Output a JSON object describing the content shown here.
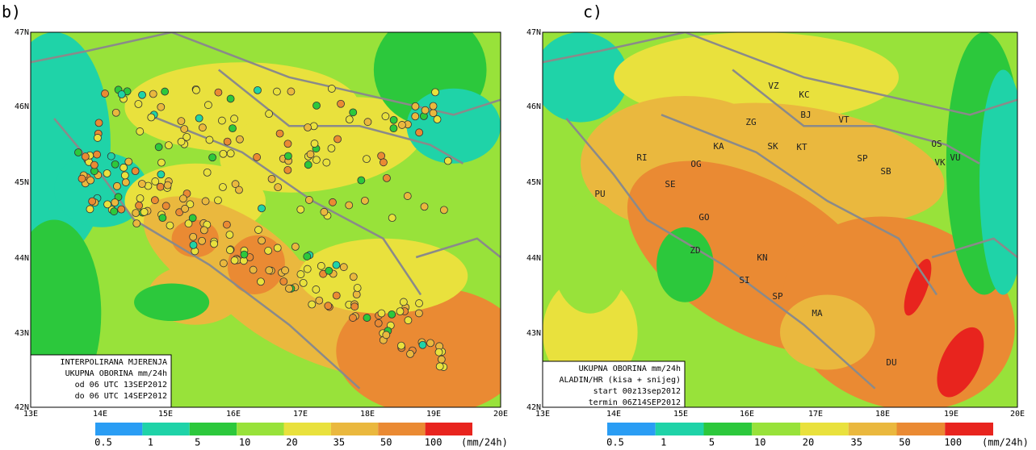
{
  "panels": [
    {
      "label": "b)",
      "lat_ticks": [
        "47N",
        "46N",
        "45N",
        "44N",
        "43N",
        "42N"
      ],
      "lon_ticks": [
        "13E",
        "14E",
        "15E",
        "16E",
        "17E",
        "18E",
        "19E",
        "20E"
      ],
      "legend": [
        "INTERPOLIRANA MJERENJA",
        "UKUPNA OBORINA mm/24h",
        "od 06 UTC 13SEP2012",
        "do 06 UTC 14SEP2012"
      ],
      "colorbar": [
        "0.5",
        "1",
        "5",
        "10",
        "20",
        "35",
        "50",
        "100"
      ],
      "unit": "(mm/24h)"
    },
    {
      "label": "c)",
      "lat_ticks": [
        "47N",
        "46N",
        "45N",
        "44N",
        "43N",
        "42N"
      ],
      "lon_ticks": [
        "13E",
        "14E",
        "15E",
        "16E",
        "17E",
        "18E",
        "19E",
        "20E"
      ],
      "legend": [
        "UKUPNA OBORINA mm/24h",
        "ALADIN/HR (kisa + snijeg)",
        "start 00z13sep2012",
        "termin 06Z14SEP2012"
      ],
      "colorbar": [
        "0.5",
        "1",
        "5",
        "10",
        "20",
        "35",
        "50",
        "100"
      ],
      "unit": "(mm/24h)",
      "places": [
        "VZ",
        "KC",
        "BJ",
        "VT",
        "ZG",
        "KA",
        "SK",
        "KT",
        "OG",
        "RI",
        "SE",
        "PU",
        "SP",
        "SB",
        "OS",
        "VU",
        "VK",
        "GO",
        "ZD",
        "KN",
        "SI",
        "SP",
        "MA",
        "DU"
      ]
    }
  ]
}
